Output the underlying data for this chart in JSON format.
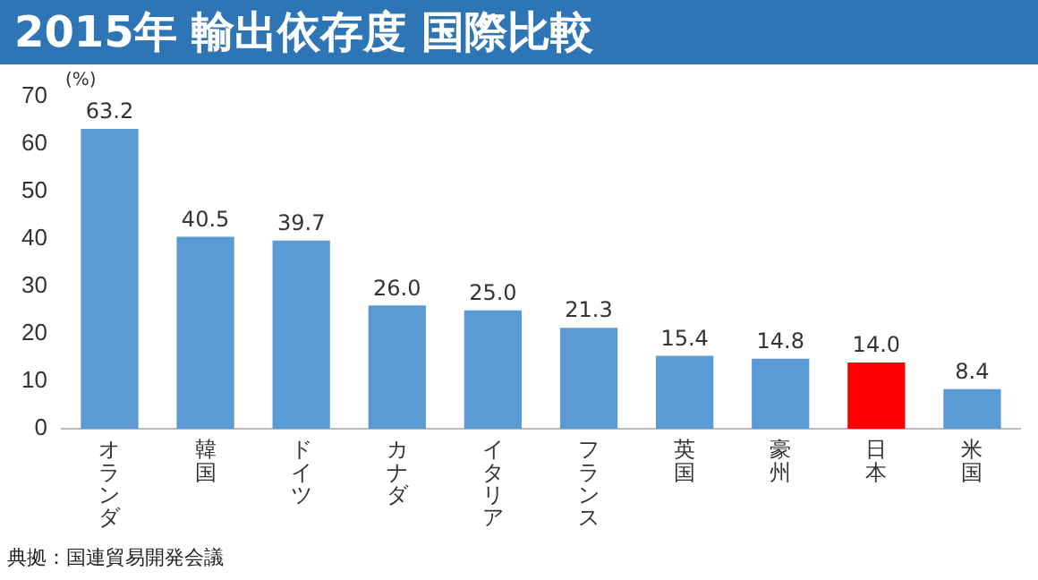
{
  "chart_data": {
    "type": "bar",
    "title": "2015年 輸出依存度 国際比較",
    "ylabel": "(%)",
    "categories": [
      "オランダ",
      "韓国",
      "ドイツ",
      "カナダ",
      "イタリア",
      "フランス",
      "英国",
      "豪州",
      "日本",
      "米国"
    ],
    "values": [
      63.2,
      40.5,
      39.7,
      26.0,
      25.0,
      21.3,
      15.4,
      14.8,
      14.0,
      8.4
    ],
    "colors": [
      "#5b9bd5",
      "#5b9bd5",
      "#5b9bd5",
      "#5b9bd5",
      "#5b9bd5",
      "#5b9bd5",
      "#5b9bd5",
      "#5b9bd5",
      "#ff0000",
      "#5b9bd5"
    ],
    "value_labels": [
      "63.2",
      "40.5",
      "39.7",
      "26.0",
      "25.0",
      "21.3",
      "15.4",
      "14.8",
      "14.0",
      "8.4"
    ],
    "ylim": [
      0,
      70
    ],
    "yticks": [
      0,
      10,
      20,
      30,
      40,
      50,
      60,
      70
    ],
    "grid": false,
    "legend": false,
    "annotations": [
      "典拠：国連貿易開発会議"
    ]
  }
}
